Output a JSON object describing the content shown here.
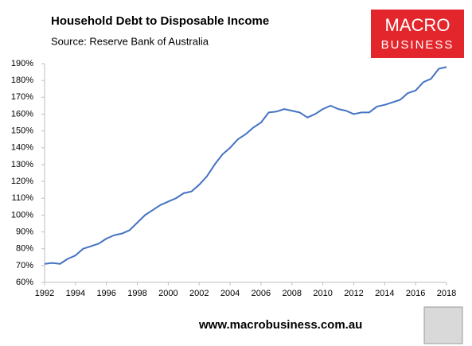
{
  "chart_data": {
    "type": "line",
    "title": "Household Debt to Disposable Income",
    "subtitle": "Source: Reserve Bank of Australia",
    "logo": [
      "MACRO",
      "BUSINESS"
    ],
    "footer": "www.macrobusiness.com.au",
    "color": "#4472c4",
    "x": [
      1992,
      1992.5,
      1993,
      1993.5,
      1994,
      1994.5,
      1995,
      1995.5,
      1996,
      1996.5,
      1997,
      1997.5,
      1998,
      1998.5,
      1999,
      1999.5,
      2000,
      2000.5,
      2001,
      2001.5,
      2002,
      2002.5,
      2003,
      2003.5,
      2004,
      2004.5,
      2005,
      2005.5,
      2006,
      2006.5,
      2007,
      2007.5,
      2008,
      2008.5,
      2009,
      2009.5,
      2010,
      2010.5,
      2011,
      2011.5,
      2012,
      2012.5,
      2013,
      2013.5,
      2014,
      2014.5,
      2015,
      2015.5,
      2016,
      2016.5,
      2017,
      2017.5,
      2018
    ],
    "values": [
      71,
      71.5,
      71,
      74,
      76,
      80,
      81.5,
      83,
      86,
      88,
      89,
      91,
      95.5,
      100,
      103,
      106,
      108,
      110,
      113,
      114,
      118,
      123,
      130,
      136,
      140,
      145,
      148,
      152,
      155,
      161,
      161.5,
      163,
      162,
      161,
      158,
      160,
      163,
      165,
      163,
      162,
      160,
      161,
      161,
      164.5,
      165.5,
      167,
      168.5,
      172.5,
      174,
      179,
      181,
      187,
      188
    ],
    "xlim": [
      1992,
      2018
    ],
    "xticks": [
      1992,
      1994,
      1996,
      1998,
      2000,
      2002,
      2004,
      2006,
      2008,
      2010,
      2012,
      2014,
      2016,
      2018
    ],
    "ylim": [
      60,
      190
    ],
    "yticks": [
      {
        "value": 60,
        "label": "60%"
      },
      {
        "value": 70,
        "label": "70%"
      },
      {
        "value": 80,
        "label": "80%"
      },
      {
        "value": 90,
        "label": "90%"
      },
      {
        "value": 100,
        "label": "100%"
      },
      {
        "value": 110,
        "label": "110%"
      },
      {
        "value": 120,
        "label": "120%"
      },
      {
        "value": 130,
        "label": "130%"
      },
      {
        "value": 140,
        "label": "140%"
      },
      {
        "value": 150,
        "label": "150%"
      },
      {
        "value": 160,
        "label": "160%"
      },
      {
        "value": 170,
        "label": "170%"
      },
      {
        "value": 180,
        "label": "180%"
      },
      {
        "value": 190,
        "label": "190%"
      }
    ],
    "grid": false
  }
}
